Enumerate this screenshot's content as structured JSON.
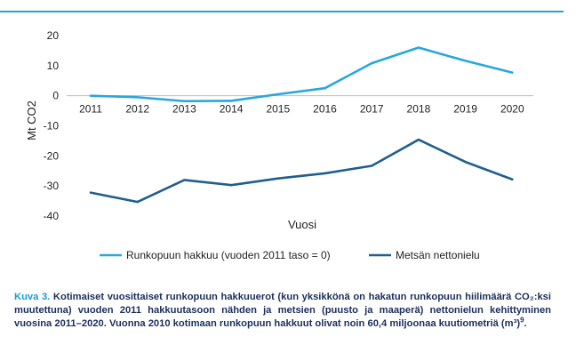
{
  "chart_data": {
    "type": "line",
    "x": [
      "2011",
      "2012",
      "2013",
      "2014",
      "2015",
      "2016",
      "2017",
      "2018",
      "2019",
      "2020"
    ],
    "series": [
      {
        "name": "Runkopuun hakkuu (vuoden 2011 taso = 0)",
        "color": "#27a6df",
        "values": [
          0,
          -0.5,
          -1.8,
          -1.7,
          0.5,
          2.5,
          10.8,
          16.0,
          11.6,
          7.7
        ]
      },
      {
        "name": "Metsän nettonielu",
        "color": "#1f5f8f",
        "values": [
          -32.2,
          -35.3,
          -28.0,
          -29.7,
          -27.5,
          -25.8,
          -23.3,
          -14.6,
          -22.0,
          -27.8
        ]
      }
    ],
    "xlabel": "Vuosi",
    "ylabel": "Mt CO2",
    "ylim": [
      -40,
      20
    ],
    "yticks": [
      20,
      10,
      0,
      -10,
      -20,
      -30,
      -40
    ],
    "grid": false,
    "legend_position": "bottom"
  },
  "caption": {
    "label": "Kuva 3.",
    "text": "Kotimaiset vuosittaiset runkopuun hakkuuerot (kun yksikkönä on hakatun runkopuun hiilimäärä CO₂:ksi muutettuna) vuoden 2011 hakkuutasoon nähden ja metsien (puusto ja maaperä) nettonielun kehittyminen vuosina 2011–2020. Vuonna 2010 kotimaan runkopuun hakkuut olivat noin 60,4 miljoonaa kuutiometriä (m³)",
    "footnote": "9",
    "end": "."
  }
}
